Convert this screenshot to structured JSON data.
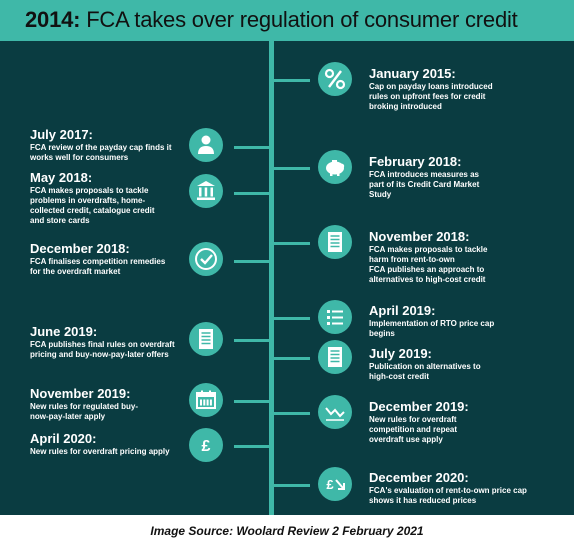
{
  "title": {
    "year": "2014:",
    "text": " FCA takes over regulation of consumer credit"
  },
  "events": [
    {
      "title": "January 2015:",
      "desc": "Cap on payday loans introduced rules on upfront fees for credit broking introduced",
      "icon": "percent-icon"
    },
    {
      "title": "July 2017:",
      "desc": "FCA review of the payday cap finds it works well for consumers",
      "icon": "person-icon"
    },
    {
      "title": "February 2018:",
      "desc": "FCA introduces measures as part of its Credit Card Market Study",
      "icon": "piggy-bank-icon"
    },
    {
      "title": "May 2018:",
      "desc": "FCA makes proposals to tackle problems in overdrafts, home-collected credit, catalogue credit and store cards",
      "icon": "bank-building-icon"
    },
    {
      "title": "November 2018:",
      "desc": "FCA makes proposals to tackle harm from rent-to-own\nFCA publishes an approach to alternatives to high-cost credit",
      "icon": "document-icon"
    },
    {
      "title": "December 2018:",
      "desc": "FCA finalises competition remedies for the overdraft market",
      "icon": "checkmark-icon"
    },
    {
      "title": "April 2019:",
      "desc": "Implementation of RTO price cap begins",
      "icon": "checklist-icon"
    },
    {
      "title": "June 2019:",
      "desc": "FCA publishes final rules on overdraft pricing and buy-now-pay-later offers",
      "icon": "document-icon"
    },
    {
      "title": "July 2019:",
      "desc": "Publication on alternatives to high-cost credit",
      "icon": "document-icon"
    },
    {
      "title": "November 2019:",
      "desc": "New rules for regulated buy-now-pay-later apply",
      "icon": "calendar-icon"
    },
    {
      "title": "December 2019:",
      "desc": "New rules for overdraft competition and repeat overdraft use apply",
      "icon": "trend-line-icon"
    },
    {
      "title": "April 2020:",
      "desc": "New rules for overdraft pricing apply",
      "icon": "pound-icon"
    },
    {
      "title": "December 2020:",
      "desc": "FCA's evaluation of rent-to-own price cap shows it has reduced prices",
      "icon": "pound-down-icon"
    }
  ],
  "source": "Image Source: Woolard Review  2 February 2021",
  "colors": {
    "teal": "#3fb8a8",
    "panel": "#0a3c41"
  }
}
